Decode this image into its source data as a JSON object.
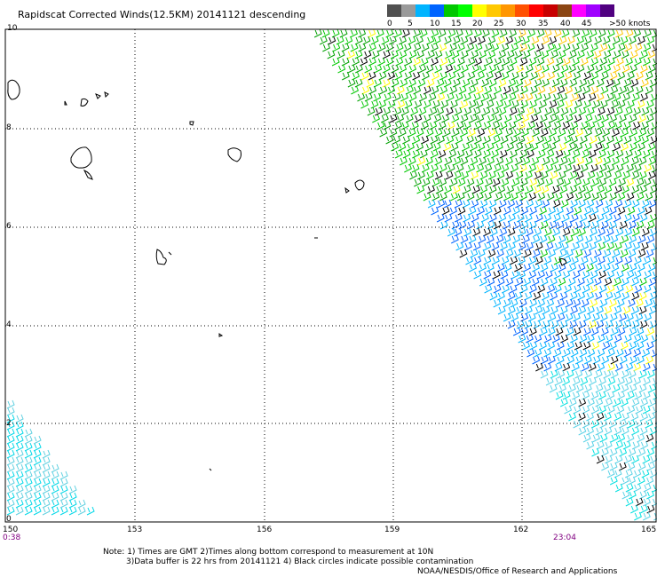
{
  "title": "Rapidscat Corrected Winds(12.5KM) 20141121 descending",
  "legend": {
    "labels": [
      "0",
      "5",
      "10",
      "15",
      "20",
      "25",
      "30",
      "35",
      "40",
      "45",
      ">50 knots"
    ],
    "colors": [
      "#505050",
      "#9a9a9a",
      "#00b4ff",
      "#0064ff",
      "#00c800",
      "#00ff00",
      "#ffff00",
      "#ffc800",
      "#ff9600",
      "#ff5000",
      "#ff0000",
      "#c80000",
      "#8b4513",
      "#ff00ff",
      "#a000ff",
      "#500080"
    ]
  },
  "axes": {
    "y_labels": [
      "10",
      "8",
      "6",
      "4",
      "2",
      "0"
    ],
    "x_labels": [
      "150",
      "153",
      "156",
      "159",
      "162",
      "165"
    ]
  },
  "times": {
    "left": "0:38",
    "right": "23:04"
  },
  "notes": {
    "line1": "Note: 1) Times are GMT 2)Times along bottom correspond to measurement at 10N",
    "line2": "3)Data buffer is 22 hrs from 20141121 4) Black circles indicate possible contamination",
    "credit": "NOAA/NESDIS/Office of Research and Applications"
  }
}
